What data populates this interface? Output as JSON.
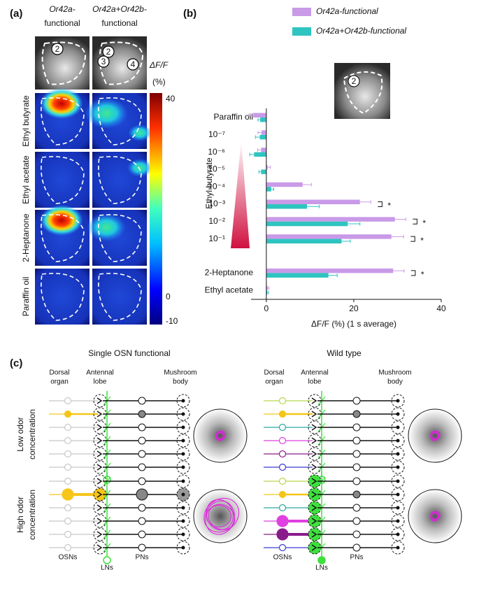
{
  "panel_labels": [
    "(a)",
    "(b)",
    "(c)"
  ],
  "panel_a": {
    "columns": [
      [
        "Or42a-",
        "functional"
      ],
      [
        "Or42a+Or42b-",
        "functional"
      ]
    ],
    "column_colors": [
      "#c58fe6",
      "#22c2c0"
    ],
    "roi_labels": [
      [
        "2"
      ],
      [
        "2",
        "3",
        "4"
      ]
    ],
    "colorbar": {
      "title": "ΔF/F",
      "unit": "(%)",
      "ticks": [
        "40",
        "0",
        "-10"
      ]
    },
    "rows": [
      "Ethyl butyrate",
      "Ethyl acetate",
      "2-Heptanone",
      "Paraffin oil"
    ],
    "row_colors": [
      "#1fb05a",
      "#1fb05a",
      "#f5a623",
      "#111111"
    ]
  },
  "chart_data": {
    "type": "bar",
    "orientation": "horizontal",
    "categories": [
      "Paraffin oil",
      "10⁻⁷",
      "10⁻⁶",
      "10⁻⁵",
      "10⁻⁴",
      "10⁻³",
      "10⁻²",
      "10⁻¹",
      "2-Heptanone",
      "Ethyl acetate"
    ],
    "category_colors": [
      "#111111",
      "#1fb05a",
      "#1fb05a",
      "#1fb05a",
      "#1fb05a",
      "#1fb05a",
      "#1fb05a",
      "#1fb05a",
      "#f5a623",
      "#1fb05a"
    ],
    "group_label": "Ethyl butyrate",
    "group_color": "#1fb05a",
    "series": [
      {
        "name": "Or42a-functional",
        "color": "#c99ae8",
        "values": [
          -3.0,
          -1.1,
          -1.2,
          0.3,
          8.3,
          21.4,
          29.4,
          28.6,
          29.0,
          0.3
        ],
        "errors": [
          1.0,
          0.8,
          0.8,
          0.6,
          2.0,
          2.5,
          2.5,
          2.8,
          2.5,
          0.3
        ]
      },
      {
        "name": "Or42a+Or42b-functional",
        "color": "#2ec4c0",
        "values": [
          -1.4,
          -1.5,
          -2.8,
          -1.2,
          1.1,
          9.3,
          18.6,
          17.2,
          14.2,
          0.2
        ],
        "errors": [
          0.5,
          1.0,
          1.0,
          0.5,
          0.6,
          2.8,
          2.8,
          2.0,
          2.0,
          0.3
        ]
      }
    ],
    "significance": [
      null,
      null,
      null,
      null,
      null,
      "*",
      "*",
      "*",
      "*",
      null
    ],
    "inset_label": "2",
    "xlabel": "ΔF/F (%) (1 s average)",
    "xlim": [
      -3.5,
      40
    ],
    "xticks": [
      0,
      20,
      40
    ]
  },
  "panel_c": {
    "panels": [
      {
        "title": "Single OSN functional"
      },
      {
        "title": "Wild type"
      }
    ],
    "column_headers": [
      [
        "Dorsal",
        "organ"
      ],
      [
        "Antennal",
        "lobe"
      ],
      [
        "Mushroom",
        "body"
      ]
    ],
    "row_labels": [
      [
        "Low odor",
        "concentration"
      ],
      [
        "High odor",
        "concentration"
      ]
    ],
    "cell_labels": [
      "OSNs",
      "LNs",
      "PNs"
    ]
  }
}
